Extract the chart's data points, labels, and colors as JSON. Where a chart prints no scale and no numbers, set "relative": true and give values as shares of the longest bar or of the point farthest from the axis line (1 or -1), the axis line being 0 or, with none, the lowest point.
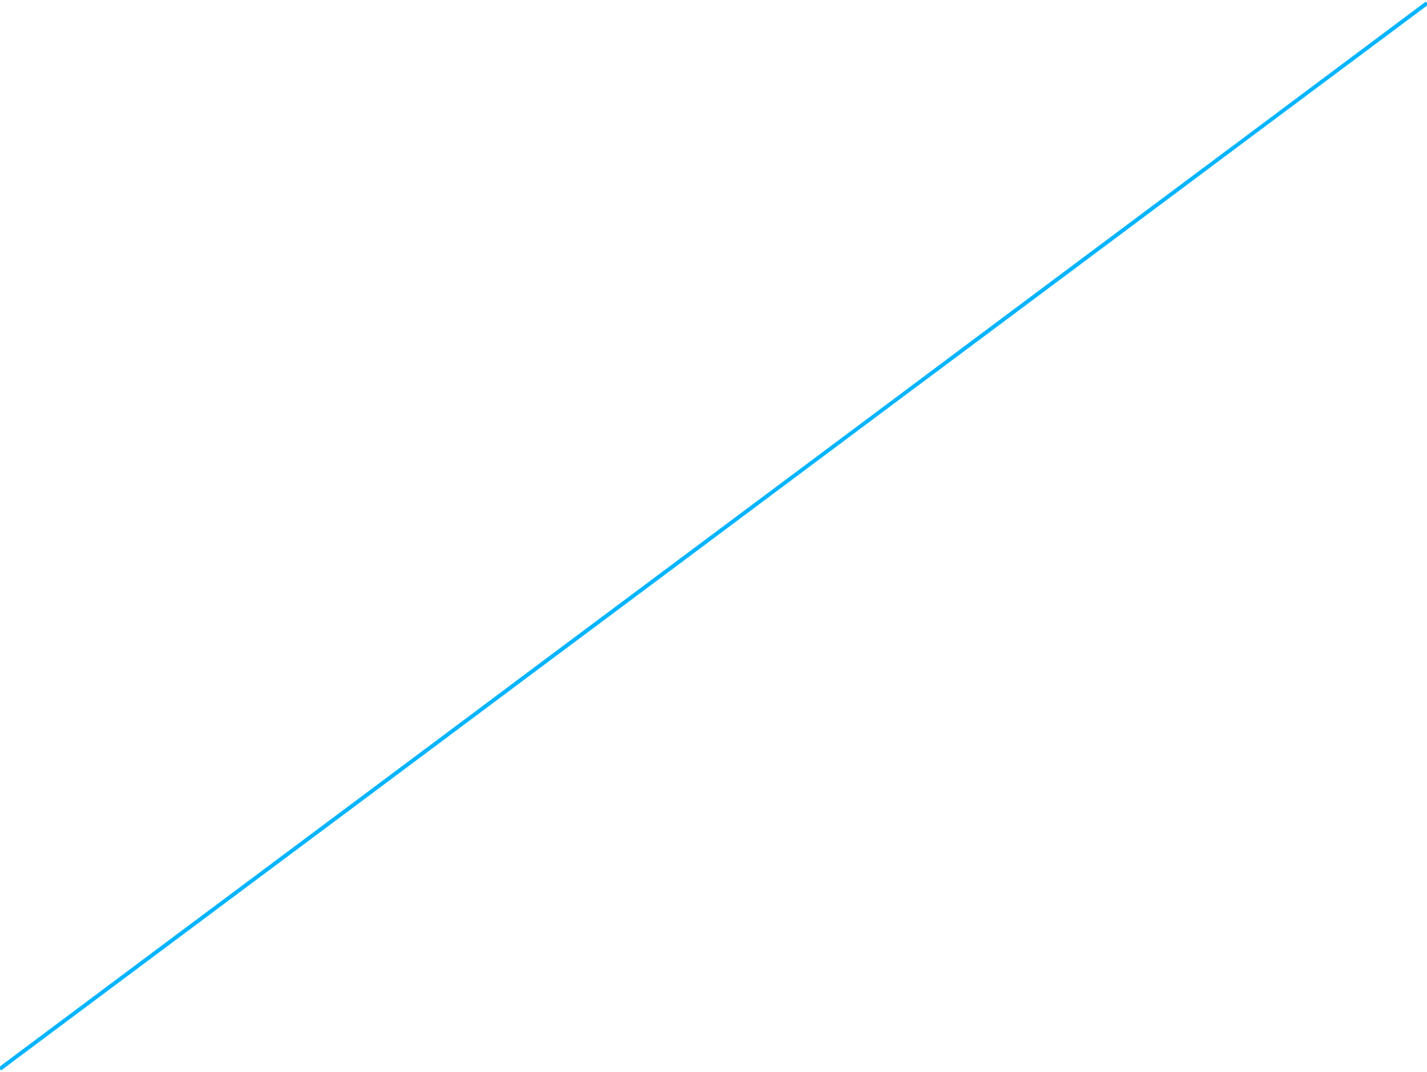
{
  "chart_data": {
    "type": "line",
    "relative": true,
    "categories": [
      null,
      null
    ],
    "values": [
      0,
      1
    ],
    "color": "#00b4ff"
  }
}
